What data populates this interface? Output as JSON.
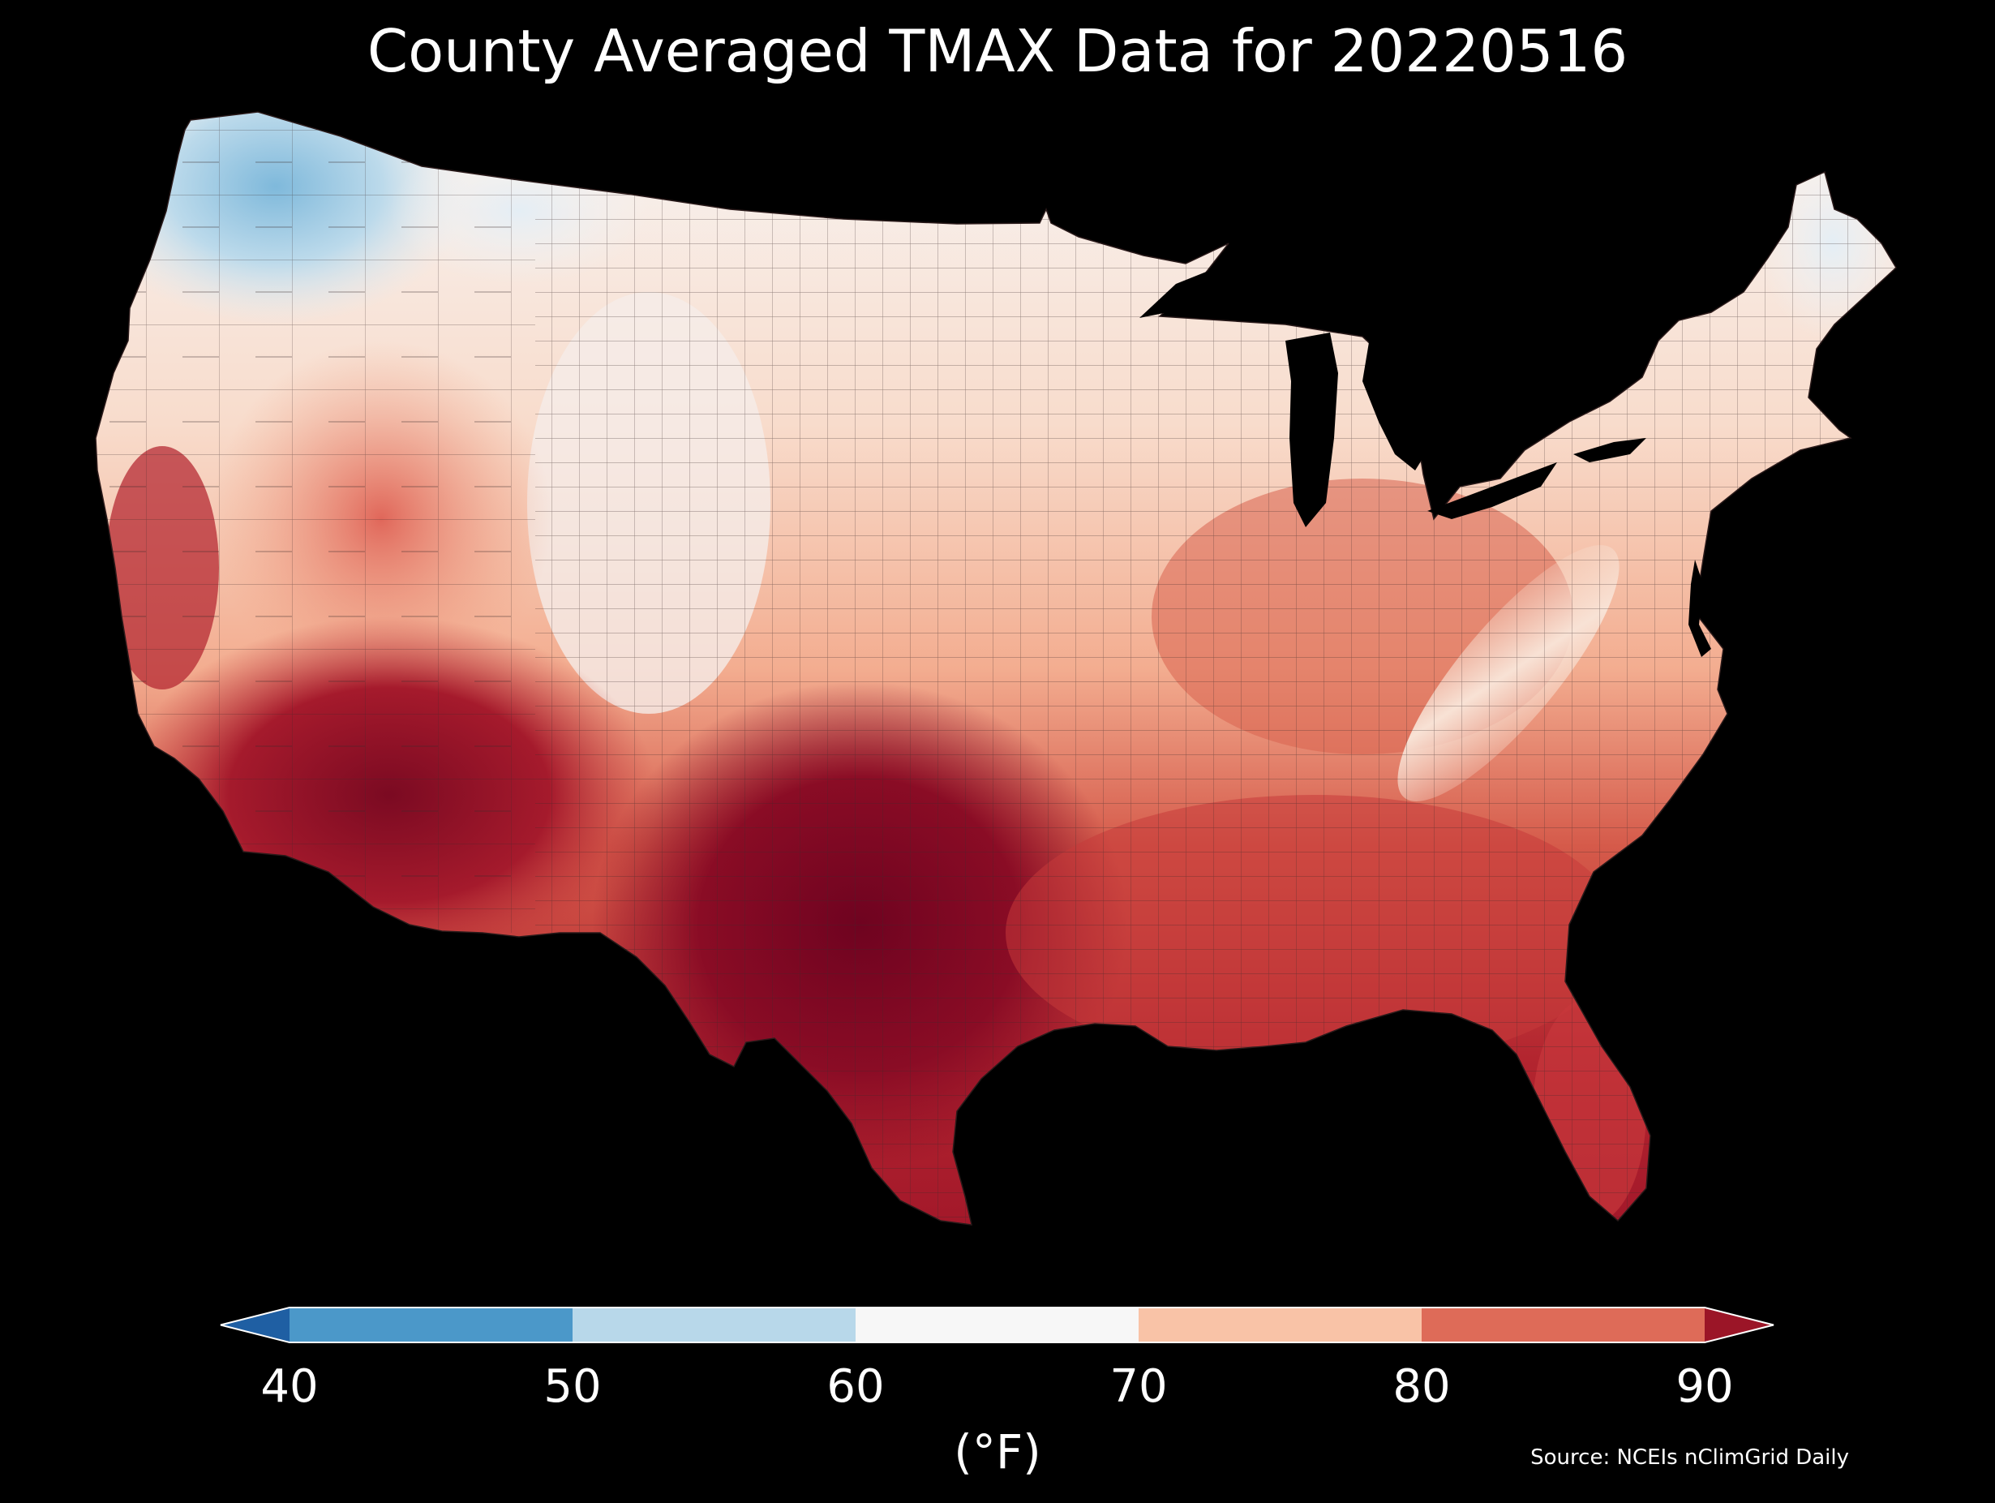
{
  "title": "County Averaged TMAX Data for 20220516",
  "colorbar": {
    "unit_label": "(°F)",
    "extend": "both",
    "ticks": [
      {
        "value": 40,
        "label": "40"
      },
      {
        "value": 50,
        "label": "50"
      },
      {
        "value": 60,
        "label": "60"
      },
      {
        "value": 70,
        "label": "70"
      },
      {
        "value": 80,
        "label": "80"
      },
      {
        "value": 90,
        "label": "90"
      }
    ],
    "bins": [
      {
        "from": null,
        "to": 40,
        "color": "#1f5fa3"
      },
      {
        "from": 40,
        "to": 50,
        "color": "#4b98c9"
      },
      {
        "from": 50,
        "to": 60,
        "color": "#b8d8ea"
      },
      {
        "from": 60,
        "to": 70,
        "color": "#f7f7f7"
      },
      {
        "from": 70,
        "to": 80,
        "color": "#f9c3a7"
      },
      {
        "from": 80,
        "to": 90,
        "color": "#de6b58"
      },
      {
        "from": 90,
        "to": null,
        "color": "#9b1527"
      }
    ]
  },
  "source": "Source: NCEIs nClimGrid Daily",
  "map_colors": {
    "background": "#000000",
    "cold_northwest": "#89bfdd",
    "cool": "#dbe9f3",
    "near_white": "#f7f4f2",
    "mild": "#f9cdb6",
    "warm": "#ef9f82",
    "hot": "#d55a4a",
    "very_hot": "#a8192c",
    "extreme": "#6f0320",
    "water": "#000000",
    "county_lines": "#3a2a2a"
  }
}
